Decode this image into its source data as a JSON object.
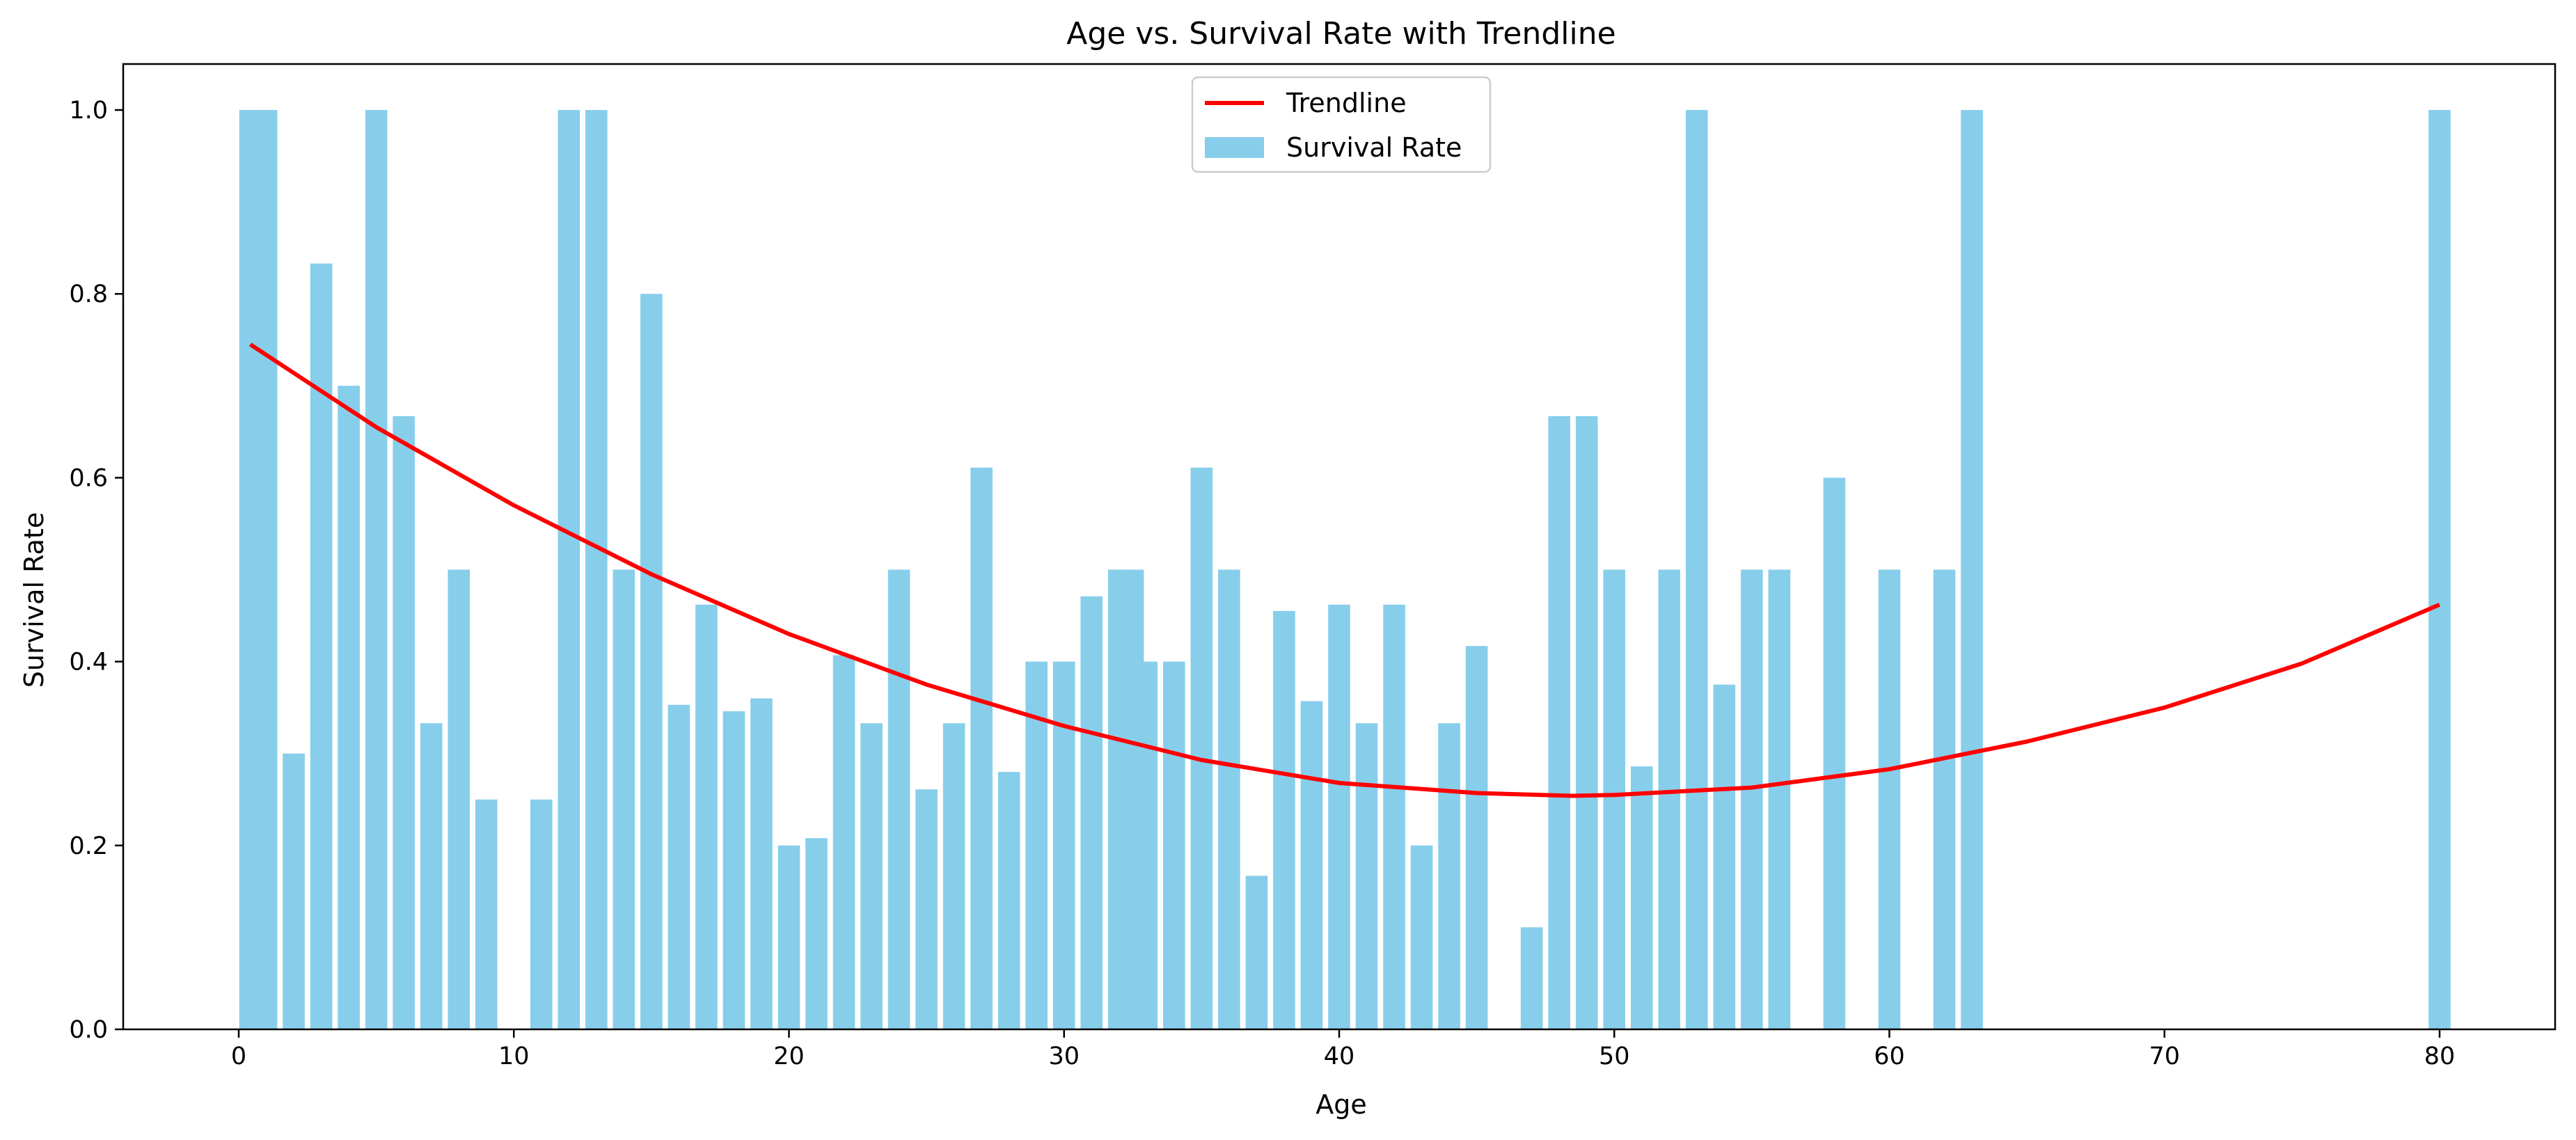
{
  "chart_data": {
    "type": "bar",
    "title": "Age vs. Survival Rate with Trendline",
    "xlabel": "Age",
    "ylabel": "Survival Rate",
    "xlim": [
      -4.2,
      84.2
    ],
    "ylim": [
      0,
      1.05
    ],
    "xticks": [
      0,
      10,
      20,
      30,
      40,
      50,
      60,
      70,
      80
    ],
    "yticks": [
      0.0,
      0.2,
      0.4,
      0.6,
      0.8,
      1.0
    ],
    "xtick_labels": [
      "0",
      "10",
      "20",
      "30",
      "40",
      "50",
      "60",
      "70",
      "80"
    ],
    "ytick_labels": [
      "0.0",
      "0.2",
      "0.4",
      "0.6",
      "0.8",
      "1.0"
    ],
    "grid": false,
    "legend": {
      "placement": "top-center",
      "entries": [
        "Trendline",
        "Survival Rate"
      ]
    },
    "bar_color": "#87ceeb",
    "line_color": "#ff0000",
    "bar_series": {
      "name": "Survival Rate",
      "x": [
        0.42,
        0.67,
        0.75,
        0.83,
        0.92,
        1,
        2,
        3,
        4,
        5,
        6,
        7,
        8,
        9,
        11,
        12,
        13,
        14,
        15,
        16,
        17,
        18,
        19,
        20,
        21,
        22,
        23,
        24,
        25,
        26,
        27,
        28,
        29,
        30,
        31,
        32,
        32.5,
        33,
        34,
        35,
        36,
        37,
        38,
        39,
        40,
        41,
        42,
        43,
        44,
        45,
        47,
        48,
        49,
        50,
        51,
        52,
        53,
        54,
        55,
        56,
        58,
        60,
        62,
        63,
        80
      ],
      "values": [
        1.0,
        1.0,
        1.0,
        1.0,
        1.0,
        1.0,
        0.3,
        0.833,
        0.7,
        1.0,
        0.667,
        0.333,
        0.5,
        0.25,
        0.25,
        1.0,
        1.0,
        0.5,
        0.8,
        0.353,
        0.462,
        0.346,
        0.36,
        0.2,
        0.208,
        0.407,
        0.333,
        0.5,
        0.261,
        0.333,
        0.611,
        0.28,
        0.4,
        0.4,
        0.471,
        0.5,
        0.5,
        0.4,
        0.4,
        0.611,
        0.5,
        0.167,
        0.455,
        0.357,
        0.462,
        0.333,
        0.462,
        0.2,
        0.333,
        0.417,
        0.111,
        0.667,
        0.667,
        0.5,
        0.286,
        0.5,
        1.0,
        0.375,
        0.5,
        0.5,
        0.6,
        0.5,
        0.5,
        1.0,
        1.0
      ],
      "bar_width": 0.8
    },
    "line_series": {
      "name": "Trendline",
      "x": [
        0.42,
        5,
        10,
        15,
        20,
        25,
        30,
        35,
        40,
        45,
        48.5,
        50,
        55,
        60,
        65,
        70,
        75,
        80
      ],
      "values": [
        0.745,
        0.655,
        0.57,
        0.495,
        0.43,
        0.375,
        0.33,
        0.293,
        0.268,
        0.257,
        0.254,
        0.255,
        0.263,
        0.283,
        0.313,
        0.35,
        0.398,
        0.462
      ]
    }
  }
}
